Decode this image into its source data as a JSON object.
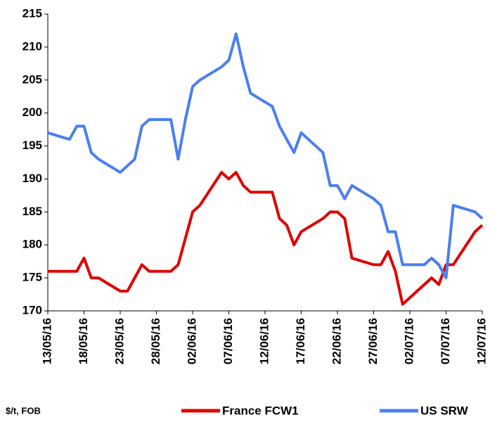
{
  "chart_data": {
    "type": "line",
    "note_label": "$/t, FOB",
    "x": [
      "13/05/16",
      "16/05/16",
      "17/05/16",
      "18/05/16",
      "19/05/16",
      "20/05/16",
      "23/05/16",
      "24/05/16",
      "25/05/16",
      "26/05/16",
      "27/05/16",
      "30/05/16",
      "31/05/16",
      "01/06/16",
      "02/06/16",
      "03/06/16",
      "06/06/16",
      "07/06/16",
      "08/06/16",
      "09/06/16",
      "10/06/16",
      "13/06/16",
      "14/06/16",
      "15/06/16",
      "16/06/16",
      "17/06/16",
      "20/06/16",
      "21/06/16",
      "22/06/16",
      "23/06/16",
      "24/06/16",
      "27/06/16",
      "28/06/16",
      "29/06/16",
      "30/06/16",
      "01/07/16",
      "04/07/16",
      "05/07/16",
      "06/07/16",
      "07/07/16",
      "08/07/16",
      "11/07/16",
      "12/07/16"
    ],
    "series": [
      {
        "name": "France FCW1",
        "color": "#e00000",
        "values": [
          176,
          176,
          176,
          178,
          175,
          175,
          173,
          173,
          175,
          177,
          176,
          176,
          177,
          181,
          185,
          186,
          191,
          190,
          191,
          189,
          188,
          188,
          184,
          183,
          180,
          182,
          184,
          185,
          185,
          184,
          178,
          177,
          177,
          179,
          176,
          171,
          174,
          175,
          174,
          177,
          177,
          182,
          183
        ]
      },
      {
        "name": "US SRW",
        "color": "#4a7ff0",
        "values": [
          197,
          196,
          198,
          198,
          194,
          193,
          191,
          192,
          193,
          198,
          199,
          199,
          193,
          199,
          204,
          205,
          207,
          208,
          212,
          207,
          203,
          201,
          198,
          196,
          194,
          197,
          194,
          189,
          189,
          187,
          189,
          187,
          186,
          182,
          182,
          177,
          177,
          178,
          177,
          175,
          186,
          185,
          184
        ]
      }
    ],
    "xticks": [
      "13/05/16",
      "18/05/16",
      "23/05/16",
      "28/05/16",
      "02/06/16",
      "07/06/16",
      "12/06/16",
      "17/06/16",
      "22/06/16",
      "27/06/16",
      "02/07/16",
      "07/07/16",
      "12/07/16"
    ],
    "xlim": [
      "13/05/16",
      "12/07/16"
    ],
    "ylim": [
      170,
      215
    ],
    "yticks": [
      170,
      175,
      180,
      185,
      190,
      195,
      200,
      205,
      210,
      215
    ]
  }
}
